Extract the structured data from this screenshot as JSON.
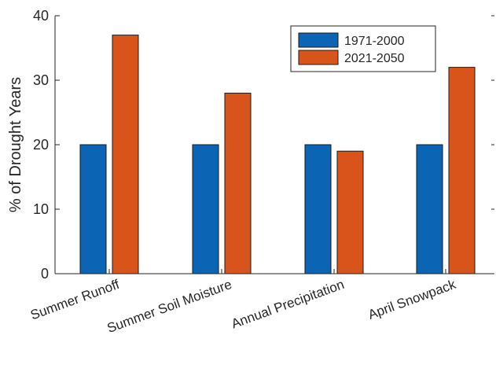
{
  "chart_data": {
    "type": "bar",
    "categories": [
      "Summer Runoff",
      "Summer Soil Moisture",
      "Annual Precipitation",
      "April Snowpack"
    ],
    "series": [
      {
        "name": "1971-2000",
        "values": [
          20,
          20,
          20,
          20
        ],
        "color": "#0b64b4"
      },
      {
        "name": "2021-2050",
        "values": [
          37,
          28,
          19,
          32
        ],
        "color": "#d9541a"
      }
    ],
    "title": "",
    "xlabel": "",
    "ylabel": "% of Drought Years",
    "ylim": [
      0,
      40
    ],
    "yticks": [
      0,
      10,
      20,
      30,
      40
    ],
    "grid": false,
    "legend_position": "top-right"
  }
}
